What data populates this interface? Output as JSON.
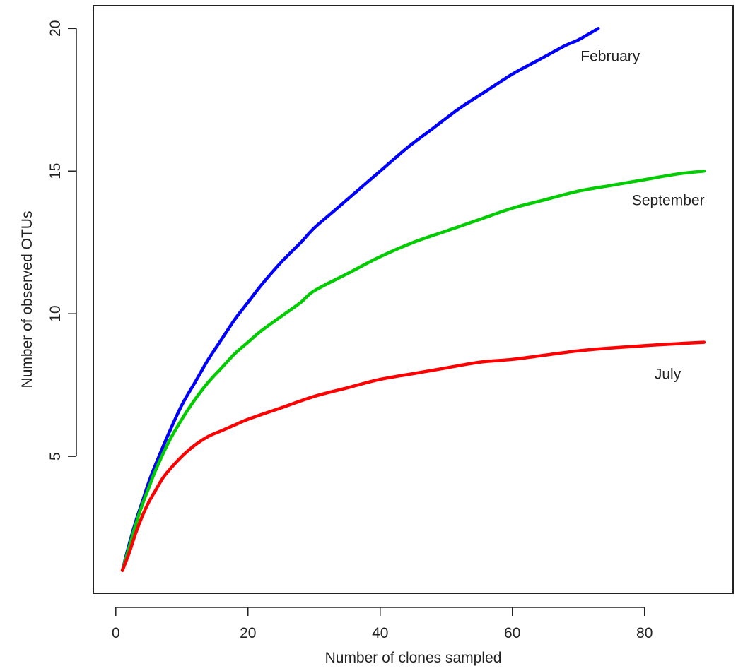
{
  "chart_data": {
    "type": "line",
    "xlabel": "Number of clones sampled",
    "ylabel": "Number of observed OTUs",
    "xlim": [
      -3.4,
      93.4
    ],
    "ylim": [
      0.2,
      20.8
    ],
    "x_ticks": [
      0,
      20,
      40,
      60,
      80
    ],
    "y_ticks": [
      5,
      10,
      15,
      20
    ],
    "grid": false,
    "legend": "none (series labels placed beside line ends)",
    "series": [
      {
        "name": "February",
        "color": "#0000ff",
        "x": [
          1,
          2,
          3,
          4,
          5,
          6,
          8,
          10,
          12,
          14,
          16,
          18,
          20,
          22,
          25,
          28,
          30,
          33,
          36,
          40,
          44,
          48,
          52,
          56,
          60,
          64,
          68,
          70,
          73
        ],
        "y": [
          1.0,
          1.9,
          2.7,
          3.4,
          4.1,
          4.7,
          5.8,
          6.8,
          7.6,
          8.4,
          9.1,
          9.8,
          10.4,
          11.0,
          11.8,
          12.5,
          13.0,
          13.6,
          14.2,
          15.0,
          15.8,
          16.5,
          17.2,
          17.8,
          18.4,
          18.9,
          19.4,
          19.6,
          20.0
        ]
      },
      {
        "name": "September",
        "color": "#00cc00",
        "x": [
          1,
          2,
          3,
          4,
          5,
          6,
          8,
          10,
          12,
          14,
          16,
          18,
          20,
          22,
          25,
          28,
          30,
          35,
          40,
          45,
          50,
          55,
          60,
          65,
          70,
          75,
          80,
          85,
          89
        ],
        "y": [
          1.0,
          1.8,
          2.6,
          3.3,
          3.9,
          4.5,
          5.5,
          6.3,
          7.0,
          7.6,
          8.1,
          8.6,
          9.0,
          9.4,
          9.9,
          10.4,
          10.8,
          11.4,
          12.0,
          12.5,
          12.9,
          13.3,
          13.7,
          14.0,
          14.3,
          14.5,
          14.7,
          14.9,
          15.0
        ]
      },
      {
        "name": "July",
        "color": "#ff0000",
        "x": [
          1,
          2,
          3,
          4,
          5,
          6,
          7,
          8,
          10,
          12,
          14,
          16,
          18,
          20,
          25,
          30,
          35,
          40,
          45,
          50,
          55,
          60,
          65,
          70,
          75,
          80,
          85,
          89
        ],
        "y": [
          1.0,
          1.6,
          2.3,
          2.9,
          3.4,
          3.8,
          4.2,
          4.5,
          5.0,
          5.4,
          5.7,
          5.9,
          6.1,
          6.3,
          6.7,
          7.1,
          7.4,
          7.7,
          7.9,
          8.1,
          8.3,
          8.4,
          8.55,
          8.7,
          8.8,
          8.88,
          8.95,
          9.0
        ]
      }
    ]
  }
}
